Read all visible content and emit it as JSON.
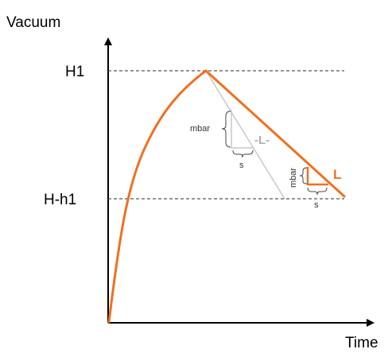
{
  "labels": {
    "y_axis": "Vacuum",
    "x_axis": "Time",
    "h1": "H1",
    "h_h1": "H-h1",
    "grey_unit_mbar": "mbar",
    "grey_unit_s": "s",
    "grey_slope": "-L-",
    "orange_unit_mbar": "mbar",
    "orange_unit_s": "s",
    "orange_slope": "L"
  },
  "colors": {
    "curve": "#f07020",
    "grey_line": "#c8c8c8",
    "axis": "#000000",
    "dashed": "#555555"
  }
}
